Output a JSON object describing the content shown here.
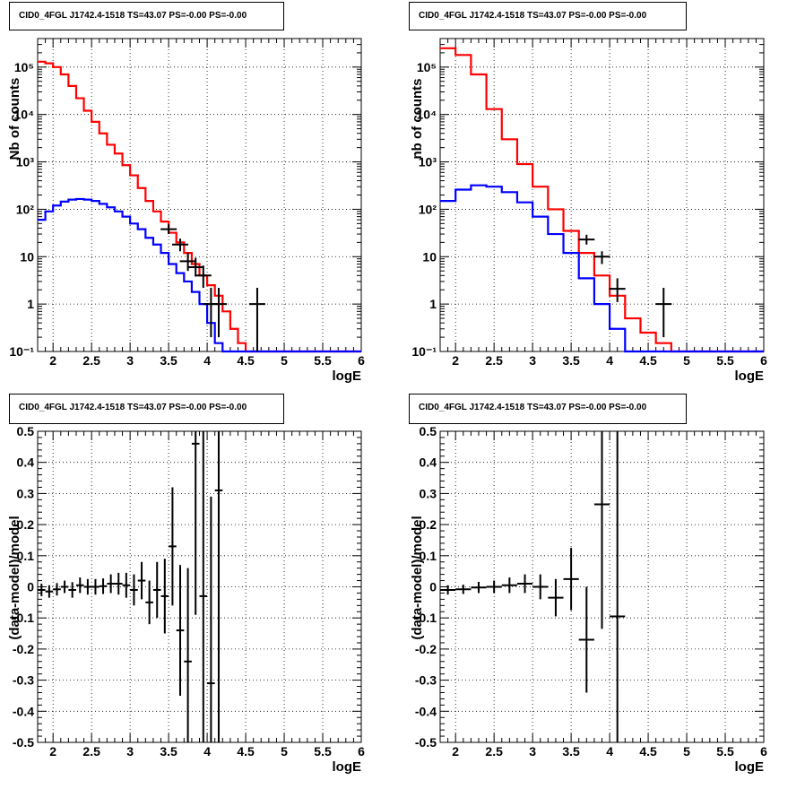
{
  "panel_title": "CID0_4FGL J1742.4-1518 TS=43.07 PS=-0.00 PS=-0.00",
  "colors": {
    "model_total": "#ff0000",
    "model_source": "#0000ff",
    "data": "#000000"
  },
  "chart_data": [
    {
      "type": "line",
      "panel": "top-left",
      "title": "CID0_4FGL J1742.4-1518 TS=43.07 PS=-0.00 PS=-0.00",
      "xlabel": "logE",
      "ylabel": "Nb of counts",
      "xlim": [
        1.8,
        6.0
      ],
      "ylim": [
        0.1,
        400000
      ],
      "yscale": "log",
      "grid": true,
      "x_ticks": [
        "2",
        "2.5",
        "3",
        "3.5",
        "4",
        "4.5",
        "5",
        "5.5",
        "6"
      ],
      "y_ticks": [
        "10⁻¹",
        "1",
        "10",
        "10²",
        "10³",
        "10⁴",
        "10⁵"
      ],
      "series": [
        {
          "role": "model_total",
          "bin_width": 0.1,
          "x": [
            1.8,
            1.9,
            2.0,
            2.1,
            2.2,
            2.3,
            2.4,
            2.5,
            2.6,
            2.7,
            2.8,
            2.9,
            3.0,
            3.1,
            3.2,
            3.3,
            3.4,
            3.5,
            3.6,
            3.7,
            3.8,
            3.9,
            4.0,
            4.1,
            4.2,
            4.3,
            4.4,
            4.5,
            4.6,
            4.7,
            4.8,
            4.9,
            5.0,
            5.1,
            5.2,
            5.3,
            5.4,
            5.5,
            5.6,
            5.7,
            5.8,
            5.9
          ],
          "values": [
            130000,
            120000,
            100000,
            70000,
            40000,
            22000,
            12000,
            7000,
            4000,
            2300,
            1500,
            850,
            520,
            280,
            150,
            90,
            55,
            32,
            20,
            12,
            7,
            4,
            2.5,
            1.5,
            0.7,
            0.3,
            0.15,
            0.1,
            0.1,
            0.1,
            0.1,
            0.1,
            0.1,
            0.1,
            0.1,
            0.1,
            0.1,
            0.1,
            0.1,
            0.1,
            0.1,
            0.1
          ]
        },
        {
          "role": "model_source",
          "bin_width": 0.1,
          "x": [
            1.8,
            1.9,
            2.0,
            2.1,
            2.2,
            2.3,
            2.4,
            2.5,
            2.6,
            2.7,
            2.8,
            2.9,
            3.0,
            3.1,
            3.2,
            3.3,
            3.4,
            3.5,
            3.6,
            3.7,
            3.8,
            3.9,
            4.0,
            4.1,
            4.2,
            4.3,
            4.4,
            4.5,
            4.6,
            4.7,
            4.8,
            4.9,
            5.0,
            5.1,
            5.2,
            5.3,
            5.4,
            5.5,
            5.6,
            5.7,
            5.8,
            5.9
          ],
          "values": [
            60,
            90,
            120,
            145,
            160,
            165,
            160,
            150,
            130,
            110,
            90,
            70,
            50,
            38,
            25,
            18,
            12,
            7,
            4.5,
            3,
            1.8,
            1,
            0.4,
            0.15,
            0.1,
            0.1,
            0.1,
            0.1,
            0.1,
            0.1,
            0.1,
            0.1,
            0.1,
            0.1,
            0.1,
            0.1,
            0.1,
            0.1,
            0.1,
            0.1,
            0.1,
            0.1
          ]
        },
        {
          "role": "data",
          "points": [
            {
              "x": 3.5,
              "y": 38,
              "ylo": 30,
              "yhi": 48
            },
            {
              "x": 3.65,
              "y": 18,
              "ylo": 13,
              "yhi": 24
            },
            {
              "x": 3.75,
              "y": 8,
              "ylo": 5,
              "yhi": 12
            },
            {
              "x": 3.85,
              "y": 6,
              "ylo": 3.8,
              "yhi": 9.5
            },
            {
              "x": 3.95,
              "y": 4,
              "ylo": 2.2,
              "yhi": 6.5
            },
            {
              "x": 4.05,
              "y": 1,
              "ylo": 0.2,
              "yhi": 2.2
            },
            {
              "x": 4.15,
              "y": 1,
              "ylo": 0.2,
              "yhi": 2.2
            },
            {
              "x": 4.65,
              "y": 1,
              "ylo": 0.1,
              "yhi": 2.2
            }
          ]
        }
      ]
    },
    {
      "type": "line",
      "panel": "top-right",
      "title": "CID0_4FGL J1742.4-1518 TS=43.07 PS=-0.00 PS=-0.00",
      "xlabel": "logE",
      "ylabel": "nb of counts",
      "xlim": [
        1.8,
        6.0
      ],
      "ylim": [
        0.1,
        400000
      ],
      "yscale": "log",
      "grid": true,
      "x_ticks": [
        "2",
        "2.5",
        "3",
        "3.5",
        "4",
        "4.5",
        "5",
        "5.5",
        "6"
      ],
      "y_ticks": [
        "10⁻¹",
        "1",
        "10",
        "10²",
        "10³",
        "10⁴",
        "10⁵"
      ],
      "series": [
        {
          "role": "model_total",
          "bin_width": 0.2,
          "x": [
            1.8,
            2.0,
            2.2,
            2.4,
            2.6,
            2.8,
            3.0,
            3.2,
            3.4,
            3.6,
            3.8,
            4.0,
            4.2,
            4.4,
            4.6,
            4.8,
            5.0,
            5.2,
            5.4,
            5.6,
            5.8
          ],
          "values": [
            250000,
            180000,
            70000,
            13000,
            3000,
            900,
            300,
            100,
            35,
            12,
            4,
            1.5,
            0.5,
            0.25,
            0.15,
            0.1,
            0.1,
            0.1,
            0.1,
            0.1,
            0.1
          ]
        },
        {
          "role": "model_source",
          "bin_width": 0.2,
          "x": [
            1.8,
            2.0,
            2.2,
            2.4,
            2.6,
            2.8,
            3.0,
            3.2,
            3.4,
            3.6,
            3.8,
            4.0,
            4.2,
            4.4,
            4.6,
            4.8,
            5.0,
            5.2,
            5.4,
            5.6,
            5.8
          ],
          "values": [
            150,
            260,
            320,
            300,
            230,
            140,
            70,
            30,
            12,
            3.5,
            1,
            0.3,
            0.1,
            0.1,
            0.1,
            0.1,
            0.1,
            0.1,
            0.1,
            0.1,
            0.1
          ]
        },
        {
          "role": "data",
          "points": [
            {
              "x": 3.7,
              "y": 23,
              "ylo": 18,
              "yhi": 29
            },
            {
              "x": 3.9,
              "y": 10,
              "ylo": 7,
              "yhi": 13
            },
            {
              "x": 4.1,
              "y": 2.1,
              "ylo": 1.1,
              "yhi": 3.5
            },
            {
              "x": 4.7,
              "y": 1,
              "ylo": 0.2,
              "yhi": 2.2
            }
          ]
        }
      ]
    },
    {
      "type": "scatter",
      "panel": "bottom-left",
      "title": "CID0_4FGL J1742.4-1518 TS=43.07 PS=-0.00 PS=-0.00",
      "xlabel": "logE",
      "ylabel": "(data-model)/model",
      "xlim": [
        1.8,
        6.0
      ],
      "ylim": [
        -0.5,
        0.5
      ],
      "grid": true,
      "x_ticks": [
        "2",
        "2.5",
        "3",
        "3.5",
        "4",
        "4.5",
        "5",
        "5.5",
        "6"
      ],
      "y_ticks": [
        "-0.5",
        "-0.4",
        "-0.3",
        "-0.2",
        "-0.1",
        "0",
        "0.1",
        "0.2",
        "0.3",
        "0.4",
        "0.5"
      ],
      "x_halfwidth": 0.05,
      "points": [
        {
          "x": 1.85,
          "y": -0.01,
          "err": 0.02
        },
        {
          "x": 1.95,
          "y": -0.015,
          "err": 0.02
        },
        {
          "x": 2.05,
          "y": -0.008,
          "err": 0.02
        },
        {
          "x": 2.15,
          "y": 0.0,
          "err": 0.02
        },
        {
          "x": 2.25,
          "y": -0.01,
          "err": 0.025
        },
        {
          "x": 2.35,
          "y": 0.005,
          "err": 0.025
        },
        {
          "x": 2.45,
          "y": 0.0,
          "err": 0.025
        },
        {
          "x": 2.55,
          "y": 0.0,
          "err": 0.025
        },
        {
          "x": 2.65,
          "y": 0.002,
          "err": 0.025
        },
        {
          "x": 2.75,
          "y": 0.01,
          "err": 0.03
        },
        {
          "x": 2.85,
          "y": 0.01,
          "err": 0.035
        },
        {
          "x": 2.95,
          "y": 0.005,
          "err": 0.04
        },
        {
          "x": 3.05,
          "y": -0.01,
          "err": 0.05
        },
        {
          "x": 3.15,
          "y": 0.02,
          "err": 0.06
        },
        {
          "x": 3.25,
          "y": -0.05,
          "err": 0.07
        },
        {
          "x": 3.35,
          "y": -0.01,
          "err": 0.09
        },
        {
          "x": 3.45,
          "y": -0.03,
          "err": 0.12
        },
        {
          "x": 3.55,
          "y": 0.13,
          "err": 0.19
        },
        {
          "x": 3.65,
          "y": -0.14,
          "err": 0.21
        },
        {
          "x": 3.75,
          "y": -0.24,
          "err": 0.3
        },
        {
          "x": 3.85,
          "y": 0.46,
          "err": 0.55
        },
        {
          "x": 3.95,
          "y": -0.03,
          "err": 0.6
        },
        {
          "x": 4.05,
          "y": -0.31,
          "err": 0.6
        },
        {
          "x": 4.15,
          "y": 0.31,
          "err": 0.9
        }
      ]
    },
    {
      "type": "scatter",
      "panel": "bottom-right",
      "title": "CID0_4FGL J1742.4-1518 TS=43.07 PS=-0.00 PS=-0.00",
      "xlabel": "logE",
      "ylabel": "(data-model)/model",
      "xlim": [
        1.8,
        6.0
      ],
      "ylim": [
        -0.5,
        0.5
      ],
      "grid": true,
      "x_ticks": [
        "2",
        "2.5",
        "3",
        "3.5",
        "4",
        "4.5",
        "5",
        "5.5",
        "6"
      ],
      "y_ticks": [
        "-0.5",
        "-0.4",
        "-0.3",
        "-0.2",
        "-0.1",
        "0",
        "0.1",
        "0.2",
        "0.3",
        "0.4",
        "0.5"
      ],
      "x_halfwidth": 0.1,
      "points": [
        {
          "x": 1.9,
          "y": -0.01,
          "err": 0.015
        },
        {
          "x": 2.1,
          "y": -0.008,
          "err": 0.015
        },
        {
          "x": 2.3,
          "y": -0.002,
          "err": 0.018
        },
        {
          "x": 2.5,
          "y": 0.0,
          "err": 0.02
        },
        {
          "x": 2.7,
          "y": 0.005,
          "err": 0.025
        },
        {
          "x": 2.9,
          "y": 0.01,
          "err": 0.03
        },
        {
          "x": 3.1,
          "y": 0.0,
          "err": 0.04
        },
        {
          "x": 3.3,
          "y": -0.035,
          "err": 0.06
        },
        {
          "x": 3.5,
          "y": 0.025,
          "err": 0.1
        },
        {
          "x": 3.7,
          "y": -0.17,
          "err": 0.17
        },
        {
          "x": 3.9,
          "y": 0.265,
          "err": 0.4
        },
        {
          "x": 4.1,
          "y": -0.095,
          "err": 0.8
        }
      ]
    }
  ]
}
